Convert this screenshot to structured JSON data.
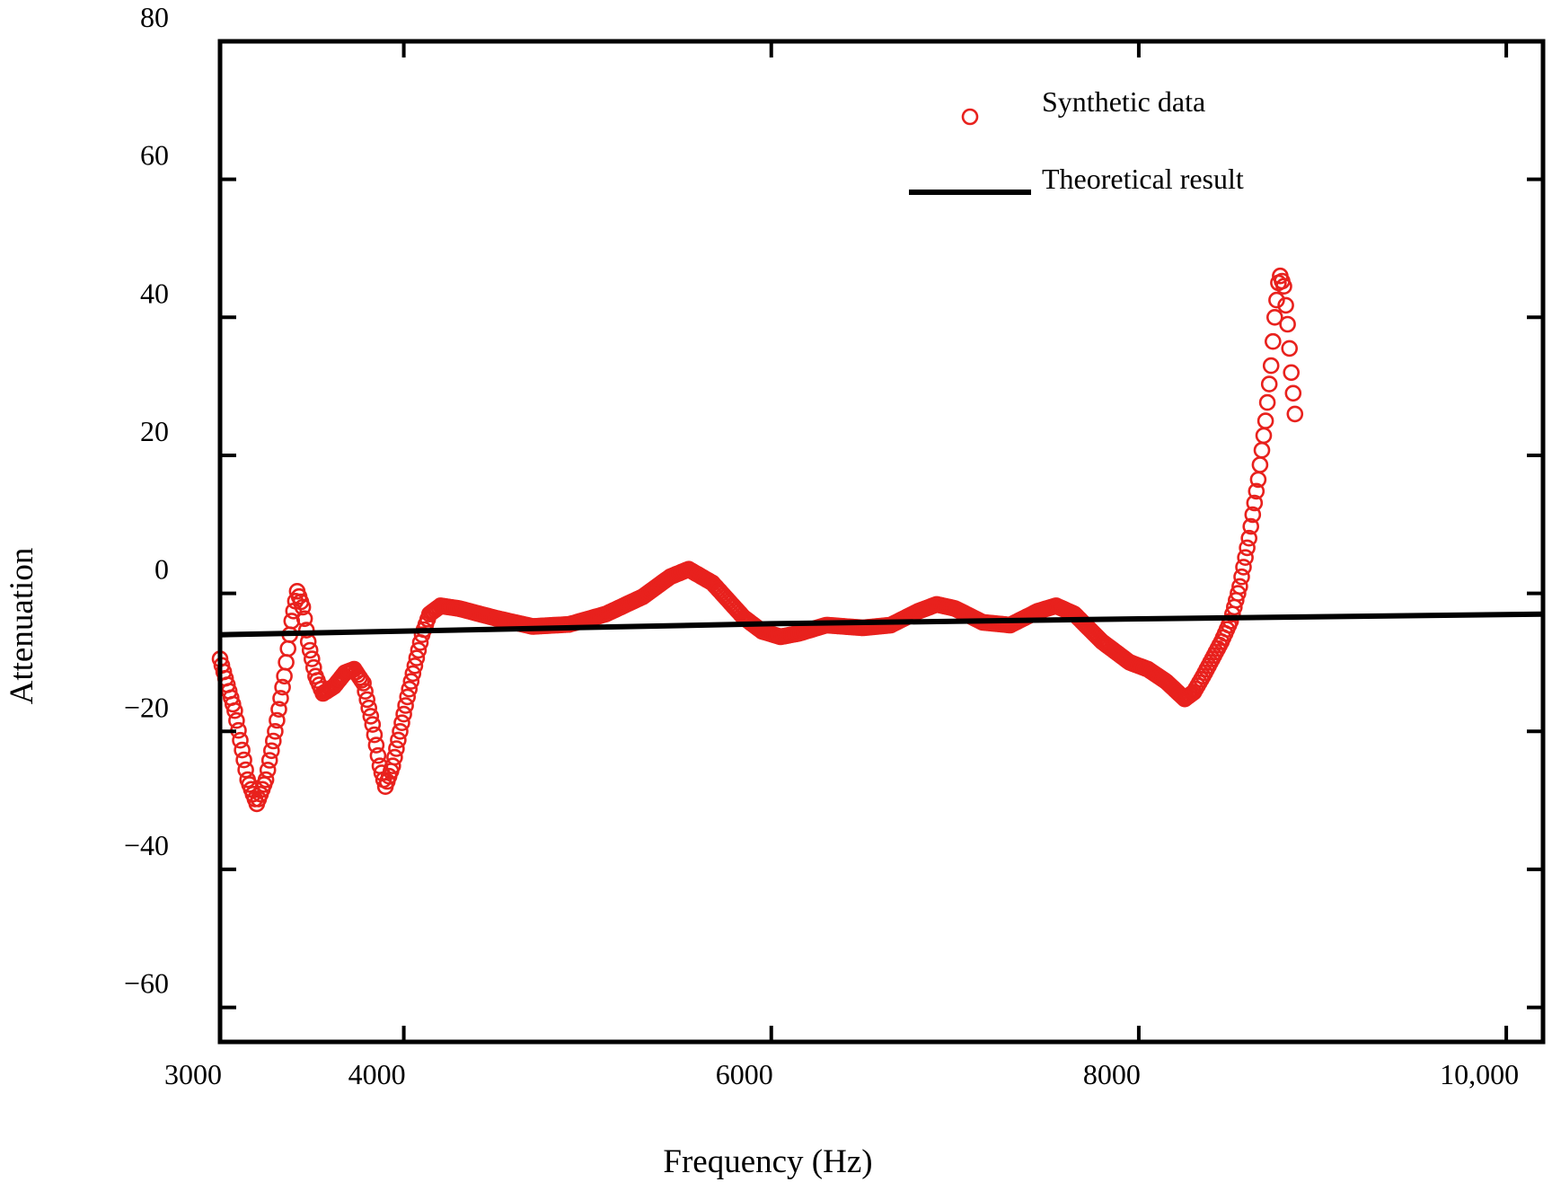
{
  "chart_data": {
    "type": "scatter",
    "title": "",
    "xlabel": "Frequency (Hz)",
    "ylabel": "Attenuation",
    "xlim": [
      3000,
      10200
    ],
    "ylim": [
      -65,
      80
    ],
    "x_ticks": [
      3000,
      4000,
      6000,
      8000,
      10000
    ],
    "x_tick_labels": [
      "3000",
      "4000",
      "6000",
      "8000",
      "10,000"
    ],
    "y_ticks": [
      -60,
      -40,
      -20,
      0,
      20,
      40,
      60,
      80
    ],
    "y_tick_labels": [
      "−60",
      "−40",
      "−20",
      "0",
      "20",
      "40",
      "60",
      "80"
    ],
    "grid": false,
    "legend_position": "top-right",
    "series": [
      {
        "name": "Synthetic data",
        "type": "scatter",
        "marker": "open-circle",
        "color": "#e8211d",
        "anchors": [
          [
            3000,
            -9.5
          ],
          [
            3080,
            -17
          ],
          [
            3150,
            -27
          ],
          [
            3200,
            -30.5
          ],
          [
            3250,
            -27
          ],
          [
            3300,
            -20
          ],
          [
            3350,
            -12
          ],
          [
            3390,
            -4
          ],
          [
            3420,
            0.3
          ],
          [
            3450,
            -2
          ],
          [
            3480,
            -7
          ],
          [
            3520,
            -12
          ],
          [
            3560,
            -14.5
          ],
          [
            3620,
            -13.5
          ],
          [
            3680,
            -11.5
          ],
          [
            3730,
            -11
          ],
          [
            3780,
            -13
          ],
          [
            3830,
            -19
          ],
          [
            3870,
            -25
          ],
          [
            3900,
            -28
          ],
          [
            3940,
            -25
          ],
          [
            3980,
            -20
          ],
          [
            4020,
            -15
          ],
          [
            4060,
            -10.5
          ],
          [
            4100,
            -6
          ],
          [
            4140,
            -3
          ],
          [
            4200,
            -1.8
          ],
          [
            4300,
            -2.2
          ],
          [
            4500,
            -3.6
          ],
          [
            4700,
            -4.8
          ],
          [
            4900,
            -4.5
          ],
          [
            5100,
            -3
          ],
          [
            5300,
            -0.5
          ],
          [
            5450,
            2.4
          ],
          [
            5550,
            3.5
          ],
          [
            5680,
            1.5
          ],
          [
            5850,
            -3.5
          ],
          [
            5950,
            -5.5
          ],
          [
            6050,
            -6.3
          ],
          [
            6150,
            -5.8
          ],
          [
            6300,
            -4.6
          ],
          [
            6500,
            -5
          ],
          [
            6650,
            -4.6
          ],
          [
            6800,
            -2.6
          ],
          [
            6900,
            -1.6
          ],
          [
            7000,
            -2.2
          ],
          [
            7150,
            -4.2
          ],
          [
            7300,
            -4.6
          ],
          [
            7450,
            -2.6
          ],
          [
            7550,
            -1.8
          ],
          [
            7650,
            -3
          ],
          [
            7800,
            -7
          ],
          [
            7950,
            -10
          ],
          [
            8050,
            -11
          ],
          [
            8150,
            -12.8
          ],
          [
            8250,
            -15.3
          ],
          [
            8300,
            -14.3
          ],
          [
            8350,
            -12
          ],
          [
            8400,
            -9.5
          ],
          [
            8450,
            -7
          ],
          [
            8500,
            -4
          ],
          [
            8550,
            1
          ],
          [
            8600,
            8
          ],
          [
            8650,
            16.5
          ],
          [
            8690,
            25
          ],
          [
            8720,
            33
          ],
          [
            8740,
            40
          ],
          [
            8760,
            45
          ],
          [
            8770,
            46
          ],
          [
            8790,
            44.5
          ],
          [
            8810,
            39
          ],
          [
            8830,
            32
          ],
          [
            8850,
            26
          ]
        ],
        "sample_step": 10
      },
      {
        "name": "Theoretical result",
        "type": "line",
        "color": "#000000",
        "x": [
          3000,
          4500,
          6000,
          8000,
          10200
        ],
        "y": [
          -6,
          -5.2,
          -4.4,
          -3.7,
          -3.0
        ]
      }
    ]
  }
}
